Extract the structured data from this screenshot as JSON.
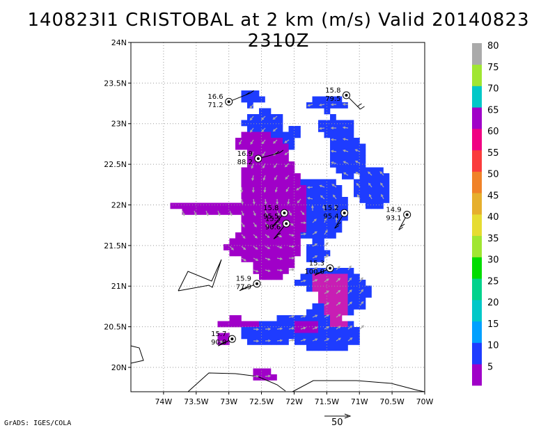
{
  "title": "140823I1 CRISTOBAL at 2 km (m/s) Valid 20140823 2310Z",
  "credit": "GrADS: IGES/COLA",
  "reference_vector_label": "50",
  "map": {
    "lon_range": [
      -74.5,
      -70.0
    ],
    "lat_range": [
      19.7,
      24.0
    ],
    "lon_ticks": [
      "74W",
      "73.5W",
      "73W",
      "72.5W",
      "72W",
      "71.5W",
      "71W",
      "70.5W",
      "70W"
    ],
    "lat_ticks": [
      "24N",
      "23.5N",
      "23N",
      "22.5N",
      "22N",
      "21.5N",
      "21N",
      "20.5N",
      "20N"
    ],
    "grid": "dotted"
  },
  "colorbar": {
    "labels": [
      "5",
      "10",
      "15",
      "20",
      "25",
      "30",
      "35",
      "40",
      "45",
      "50",
      "55",
      "60",
      "65",
      "70",
      "75",
      "80"
    ],
    "colors": [
      "#a000c8",
      "#1e3cff",
      "#00a0ff",
      "#00c8c8",
      "#00d28c",
      "#00dc00",
      "#a0e632",
      "#e6dc32",
      "#e6af2d",
      "#f08228",
      "#fa3c3c",
      "#f00082",
      "#a000c8",
      "#00c8c8",
      "#a0e632",
      "#aaaaaa"
    ]
  },
  "chart_data": {
    "type": "map",
    "variable": "wind speed at 2 km (m/s)",
    "observations": [
      {
        "lon": -73.0,
        "lat": 23.27,
        "value_top": "16.6",
        "value_bottom": "71.2"
      },
      {
        "lon": -71.2,
        "lat": 23.35,
        "value_top": "15.8",
        "value_bottom": "79.5"
      },
      {
        "lon": -72.55,
        "lat": 22.57,
        "value_top": "16.9",
        "value_bottom": "88.2"
      },
      {
        "lon": -72.15,
        "lat": 21.9,
        "value_top": "15.8",
        "value_bottom": "95.5"
      },
      {
        "lon": -72.12,
        "lat": 21.77,
        "value_top": "15.5",
        "value_bottom": "90.6"
      },
      {
        "lon": -71.23,
        "lat": 21.9,
        "value_top": "15.2",
        "value_bottom": "95.4"
      },
      {
        "lon": -70.27,
        "lat": 21.88,
        "value_top": "14.9",
        "value_bottom": "93.1"
      },
      {
        "lon": -71.45,
        "lat": 21.22,
        "value_top": "15.3",
        "value_bottom": "100.0"
      },
      {
        "lon": -72.57,
        "lat": 21.03,
        "value_top": "15.9",
        "value_bottom": "77.9"
      },
      {
        "lon": -72.95,
        "lat": 20.35,
        "value_top": "15.7",
        "value_bottom": "90.0"
      }
    ]
  }
}
